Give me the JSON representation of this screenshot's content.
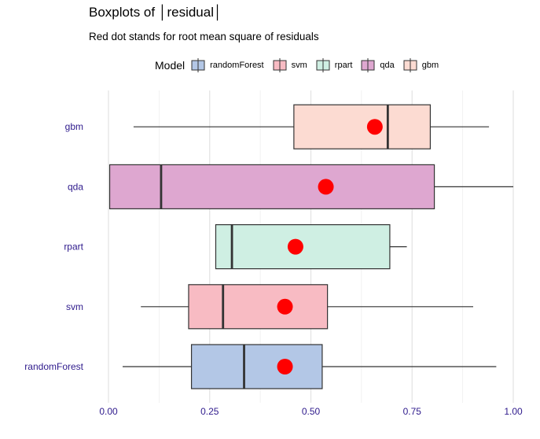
{
  "title": "Boxplots of │residual│",
  "subtitle": "Red dot stands for root mean square of residuals",
  "legend": {
    "title": "Model",
    "items": [
      {
        "label": "randomForest",
        "color": "#b3c7e6"
      },
      {
        "label": "svm",
        "color": "#f8bbc3"
      },
      {
        "label": "rpart",
        "color": "#cfefe3"
      },
      {
        "label": "qda",
        "color": "#dea7d0"
      },
      {
        "label": "gbm",
        "color": "#fcdbd2"
      }
    ]
  },
  "chart_data": {
    "type": "boxplot",
    "orientation": "horizontal",
    "categories": [
      "randomForest",
      "svm",
      "rpart",
      "qda",
      "gbm"
    ],
    "series": [
      {
        "name": "randomForest",
        "whisker_low": 0.035,
        "q1": 0.205,
        "median": 0.335,
        "q3": 0.528,
        "whisker_high": 0.958,
        "rms": 0.436
      },
      {
        "name": "svm",
        "whisker_low": 0.08,
        "q1": 0.198,
        "median": 0.283,
        "q3": 0.541,
        "whisker_high": 0.901,
        "rms": 0.436
      },
      {
        "name": "rpart",
        "whisker_low": 0.265,
        "q1": 0.265,
        "median": 0.305,
        "q3": 0.695,
        "whisker_high": 0.737,
        "rms": 0.462
      },
      {
        "name": "qda",
        "whisker_low": 0.003,
        "q1": 0.003,
        "median": 0.13,
        "q3": 0.805,
        "whisker_high": 1.0,
        "rms": 0.537
      },
      {
        "name": "gbm",
        "whisker_low": 0.062,
        "q1": 0.458,
        "median": 0.69,
        "q3": 0.795,
        "whisker_high": 0.94,
        "rms": 0.658
      }
    ],
    "xlim": [
      0.0,
      1.0
    ],
    "xticks": [
      "0.00",
      "0.25",
      "0.50",
      "0.75",
      "1.00"
    ],
    "xtick_values": [
      0.0,
      0.25,
      0.5,
      0.75,
      1.0
    ],
    "grid": true,
    "legend_position": "top",
    "point_color": "#ff0000"
  }
}
